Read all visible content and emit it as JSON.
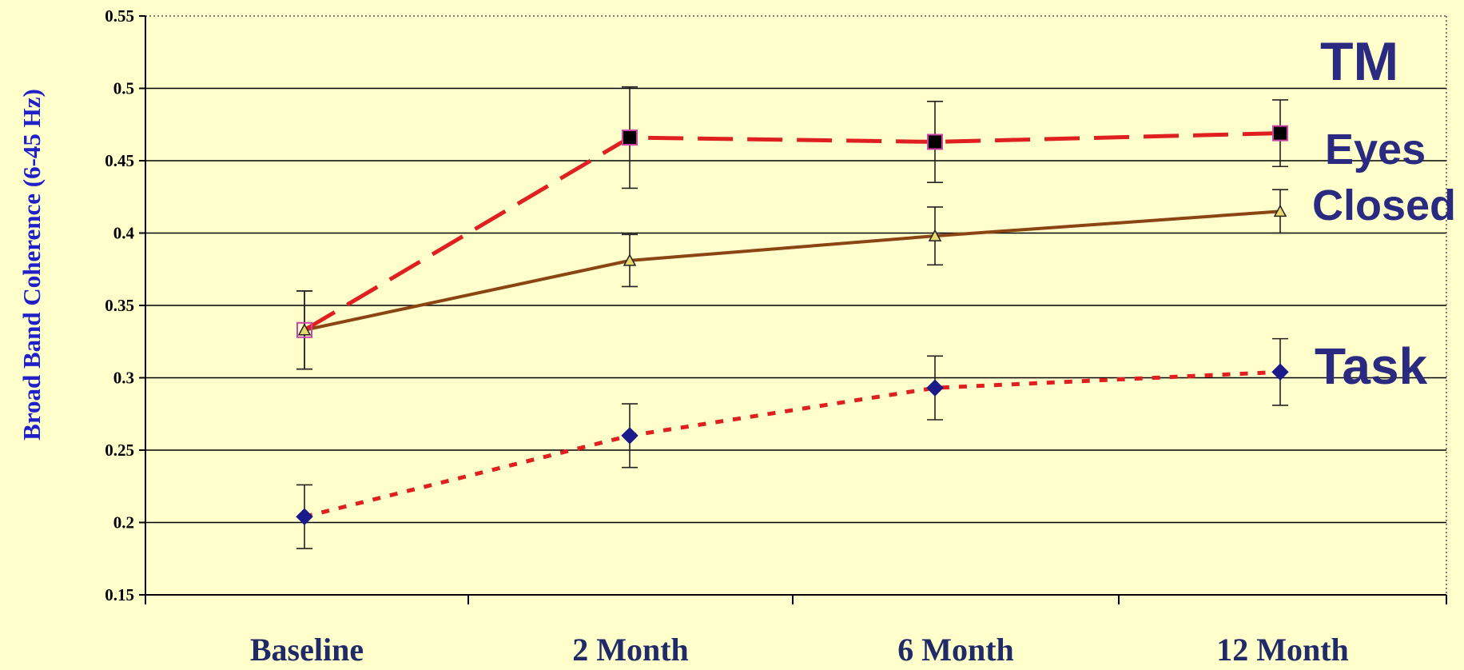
{
  "chart_data": {
    "type": "line",
    "ylabel": "Broad Band Coherence (6-45 Hz)",
    "xlabel": "",
    "categories": [
      "Baseline",
      "2 Month",
      "6 Month",
      "12 Month"
    ],
    "ylim": [
      0.15,
      0.55
    ],
    "yticks": [
      "0.15",
      "0.2",
      "0.25",
      "0.3",
      "0.35",
      "0.4",
      "0.45",
      "0.5",
      "0.55"
    ],
    "grid": true,
    "series": [
      {
        "name": "TM",
        "values": [
          0.333,
          0.466,
          0.463,
          0.469
        ],
        "error": [
          0.027,
          0.035,
          0.028,
          0.023
        ],
        "color": "#e02020",
        "line_style": "long-dash",
        "marker": "square"
      },
      {
        "name": "Eyes Closed",
        "values": [
          0.333,
          0.381,
          0.398,
          0.415
        ],
        "error": [
          0.027,
          0.018,
          0.02,
          0.015
        ],
        "color": "#8b4513",
        "line_style": "solid",
        "marker": "triangle"
      },
      {
        "name": "Task",
        "values": [
          0.204,
          0.26,
          0.293,
          0.304
        ],
        "error": [
          0.022,
          0.022,
          0.022,
          0.023
        ],
        "color": "#e02020",
        "line_style": "dotted",
        "marker": "diamond"
      }
    ],
    "annotations": [
      "TM",
      "Eyes",
      "Closed",
      "Task"
    ]
  }
}
